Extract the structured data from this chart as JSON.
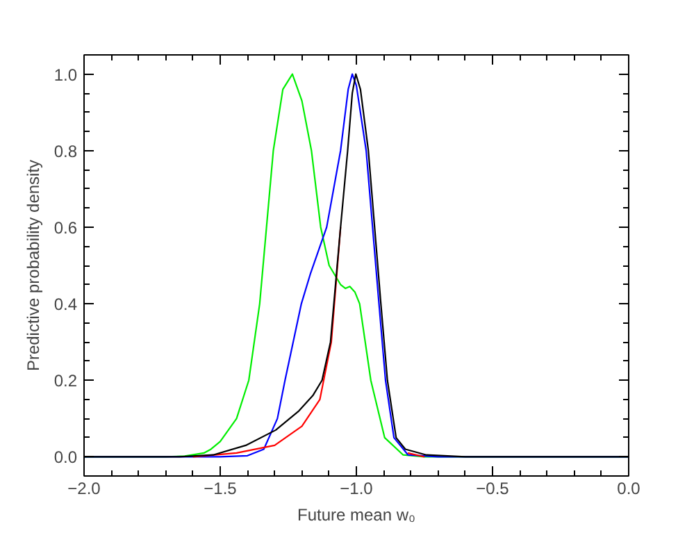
{
  "chart_data": {
    "type": "line",
    "xlabel": "Future mean w₀",
    "ylabel": "Predictive probability density",
    "xlim": [
      -2.0,
      0.0
    ],
    "ylim": [
      -0.05,
      1.05
    ],
    "xticks": [
      {
        "value": -2.0,
        "label": "−2.0"
      },
      {
        "value": -1.5,
        "label": "−1.5"
      },
      {
        "value": -1.0,
        "label": "−1.0"
      },
      {
        "value": -0.5,
        "label": "−0.5"
      },
      {
        "value": 0.0,
        "label": "0.0"
      }
    ],
    "yticks": [
      {
        "value": 0.0,
        "label": "0.0"
      },
      {
        "value": 0.2,
        "label": "0.2"
      },
      {
        "value": 0.4,
        "label": "0.4"
      },
      {
        "value": 0.6,
        "label": "0.6"
      },
      {
        "value": 0.8,
        "label": "0.8"
      },
      {
        "value": 1.0,
        "label": "1.0"
      }
    ],
    "grid": false,
    "line_style": "solid",
    "marker": "none",
    "series": [
      {
        "color": "#00ee00",
        "x": [
          -2.0,
          -1.7,
          -1.63,
          -1.56,
          -1.534,
          -1.5,
          -1.44,
          -1.395,
          -1.355,
          -1.33,
          -1.305,
          -1.27,
          -1.235,
          -1.2,
          -1.165,
          -1.131,
          -1.1,
          -1.058,
          -1.04,
          -1.024,
          -1.005,
          -0.988,
          -0.947,
          -0.896,
          -0.828,
          -0.75,
          0.0
        ],
        "values": [
          0,
          0,
          0.002,
          0.01,
          0.02,
          0.04,
          0.1,
          0.2,
          0.4,
          0.6,
          0.8,
          0.96,
          1.0,
          0.93,
          0.8,
          0.6,
          0.5,
          0.45,
          0.44,
          0.445,
          0.43,
          0.4,
          0.2,
          0.05,
          0.005,
          0,
          0
        ]
      },
      {
        "color": "#0000ff",
        "x": [
          -2.0,
          -1.5,
          -1.4,
          -1.34,
          -1.29,
          -1.262,
          -1.202,
          -1.168,
          -1.109,
          -1.058,
          -1.03,
          -1.015,
          -1.0,
          -0.964,
          -0.917,
          -0.893,
          -0.862,
          -0.81,
          -0.7,
          0.0
        ],
        "values": [
          0,
          0,
          0.003,
          0.02,
          0.1,
          0.2,
          0.4,
          0.48,
          0.6,
          0.8,
          0.96,
          1.0,
          0.97,
          0.8,
          0.4,
          0.2,
          0.05,
          0.005,
          0,
          0
        ]
      },
      {
        "color": "#ff0000",
        "x": [
          -1.6,
          -1.44,
          -1.3,
          -1.2,
          -1.134,
          -1.092,
          -1.058,
          -1.032,
          -1.015,
          -1.002,
          -0.985,
          -0.956,
          -0.91,
          -0.886,
          -0.854,
          -0.811,
          -0.75
        ],
        "values": [
          0,
          0.01,
          0.03,
          0.08,
          0.15,
          0.3,
          0.6,
          null,
          null,
          null,
          null,
          null,
          null,
          null,
          null,
          0.01,
          0
        ]
      },
      {
        "color": "#000000",
        "x": [
          -2.0,
          -1.65,
          -1.526,
          -1.406,
          -1.296,
          -1.211,
          -1.16,
          -1.126,
          -1.095,
          -1.058,
          -1.032,
          -1.015,
          -1.002,
          -0.985,
          -0.956,
          -0.91,
          -0.886,
          -0.854,
          -0.82,
          -0.743,
          -0.6,
          0.0
        ],
        "values": [
          0,
          0,
          0.005,
          0.03,
          0.07,
          0.12,
          0.16,
          0.2,
          0.3,
          0.6,
          0.8,
          0.95,
          1.0,
          0.96,
          0.8,
          0.4,
          0.2,
          0.05,
          0.02,
          0.005,
          0,
          0
        ]
      }
    ]
  }
}
